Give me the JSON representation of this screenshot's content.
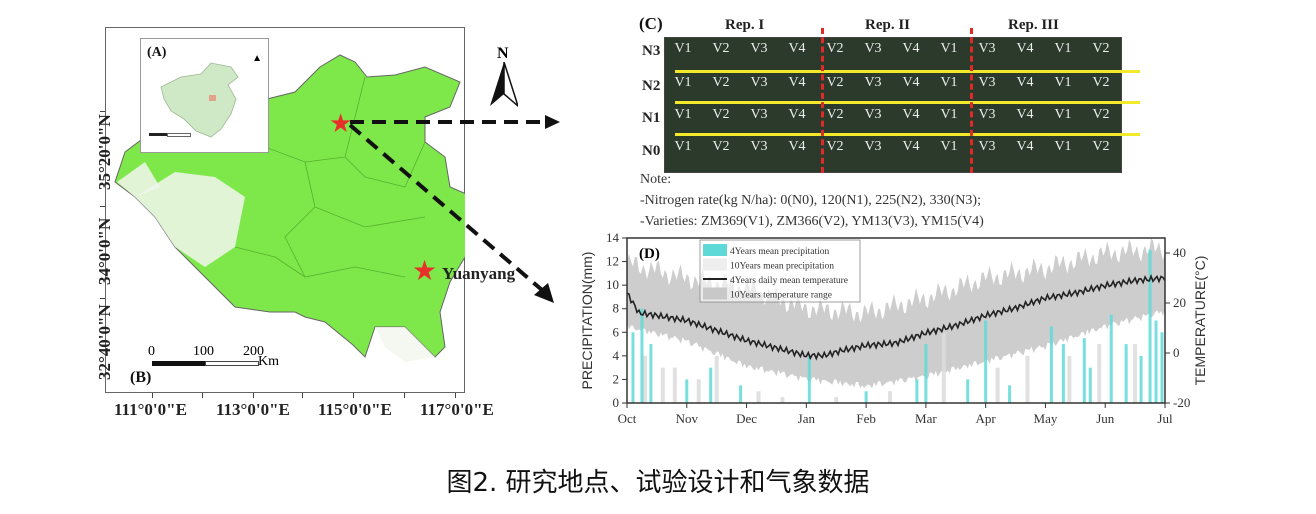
{
  "caption": "图2. 研究地点、试验设计和气象数据",
  "panel_a": {
    "label": "(A)"
  },
  "panel_b": {
    "label": "(B)",
    "lat_labels": [
      "35°20'0\"N",
      "34°0'0\"N",
      "32°40'0\"N"
    ],
    "lon_labels": [
      "111°0'0\"E",
      "113°0'0\"E",
      "115°0'0\"E",
      "117°0'0\"E"
    ],
    "scale_labels": [
      "0",
      "100",
      "200"
    ],
    "scale_unit": "Km",
    "north_label": "N",
    "site_label": "Yuanyang",
    "colors": {
      "cropland": "#7ee84a",
      "star": "#e8302a"
    }
  },
  "panel_c": {
    "label": "(C)",
    "reps": [
      "Rep. I",
      "Rep. II",
      "Rep. III"
    ],
    "rows": [
      {
        "name": "N3",
        "plots": [
          "V1",
          "V2",
          "V3",
          "V4",
          "V2",
          "V3",
          "V4",
          "V1",
          "V3",
          "V4",
          "V1",
          "V2"
        ]
      },
      {
        "name": "N2",
        "plots": [
          "V1",
          "V2",
          "V3",
          "V4",
          "V2",
          "V3",
          "V4",
          "V1",
          "V3",
          "V4",
          "V1",
          "V2"
        ]
      },
      {
        "name": "N1",
        "plots": [
          "V1",
          "V2",
          "V3",
          "V4",
          "V2",
          "V3",
          "V4",
          "V1",
          "V3",
          "V4",
          "V1",
          "V2"
        ]
      },
      {
        "name": "N0",
        "plots": [
          "V1",
          "V2",
          "V3",
          "V4",
          "V2",
          "V3",
          "V4",
          "V1",
          "V3",
          "V4",
          "V1",
          "V2"
        ]
      }
    ],
    "note_title": "Note:",
    "note_lines": [
      "-Nitrogen rate(kg N/ha): 0(N0), 120(N1), 225(N2), 330(N3);",
      "-Varieties: ZM369(V1), ZM366(V2), YM13(V3), YM15(V4)"
    ]
  },
  "chart_data": {
    "type": "line",
    "panel_label": "(D)",
    "title": "",
    "xlabel": "",
    "ylabel": "PRECIPITATION(mm)",
    "y2label": "TEMPERATURE(°C)",
    "categories": [
      "Oct",
      "Nov",
      "Dec",
      "Jan",
      "Feb",
      "Mar",
      "Apr",
      "May",
      "Jun",
      "Jul"
    ],
    "ylim": [
      0,
      14
    ],
    "yticks": [
      0,
      2,
      4,
      6,
      8,
      10,
      12,
      14
    ],
    "y2lim": [
      -20,
      46
    ],
    "y2ticks": [
      -20,
      0,
      20,
      40
    ],
    "legend": {
      "placement": "top-left",
      "entries": [
        "4Years mean precipitation",
        "10Years mean precipitation",
        "4Years daily mean temperature",
        "10Years temperature range"
      ]
    },
    "series": [
      {
        "name": "4Years daily mean temperature",
        "axis": "right",
        "color": "#222222",
        "x": [
          0,
          0.2,
          0.5,
          1,
          1.5,
          2,
          2.5,
          3,
          3.3,
          3.6,
          4,
          4.5,
          5,
          5.5,
          6,
          6.5,
          7,
          7.5,
          8,
          8.5,
          9
        ],
        "values": [
          24,
          16,
          15,
          13,
          9,
          5,
          2,
          -1,
          -1,
          1,
          3,
          4,
          8,
          11,
          15,
          18,
          22,
          24,
          27,
          29,
          30
        ]
      },
      {
        "name": "10Years temperature range (upper)",
        "axis": "right",
        "color": "#c8c8c8",
        "x": [
          0,
          1,
          2,
          3,
          4,
          5,
          6,
          7,
          8,
          9
        ],
        "values": [
          36,
          30,
          26,
          18,
          16,
          22,
          30,
          34,
          40,
          42
        ]
      },
      {
        "name": "10Years temperature range (lower)",
        "axis": "right",
        "color": "#c8c8c8",
        "x": [
          0,
          1,
          2,
          3,
          4,
          5,
          6,
          7,
          8,
          9
        ],
        "values": [
          12,
          6,
          -4,
          -9,
          -12,
          -8,
          -2,
          4,
          12,
          18
        ]
      },
      {
        "name": "4Years mean precipitation",
        "axis": "left",
        "color": "#5fd9d8",
        "x": [
          0.1,
          0.25,
          0.4,
          1.0,
          1.4,
          1.9,
          3.05,
          4.0,
          4.85,
          5.0,
          5.7,
          6.0,
          6.4,
          7.1,
          7.3,
          7.65,
          7.75,
          8.1,
          8.35,
          8.6,
          8.75,
          8.85,
          8.95
        ],
        "values": [
          6,
          8,
          5,
          2,
          3,
          1.5,
          4,
          1,
          2,
          5,
          2,
          7,
          1.5,
          6.5,
          5,
          5.5,
          3,
          7.5,
          5,
          4,
          13,
          7,
          6
        ]
      },
      {
        "name": "10Years mean precipitation",
        "axis": "left",
        "color": "#dcdcdc",
        "x": [
          0.3,
          0.6,
          0.8,
          1.2,
          1.5,
          2.2,
          2.6,
          3.5,
          4.4,
          5.3,
          6.2,
          6.7,
          7.4,
          7.9,
          8.5
        ],
        "values": [
          4,
          3,
          3,
          2,
          4,
          1,
          0.5,
          0.5,
          1,
          6,
          3,
          4,
          4,
          5,
          5
        ]
      }
    ]
  }
}
